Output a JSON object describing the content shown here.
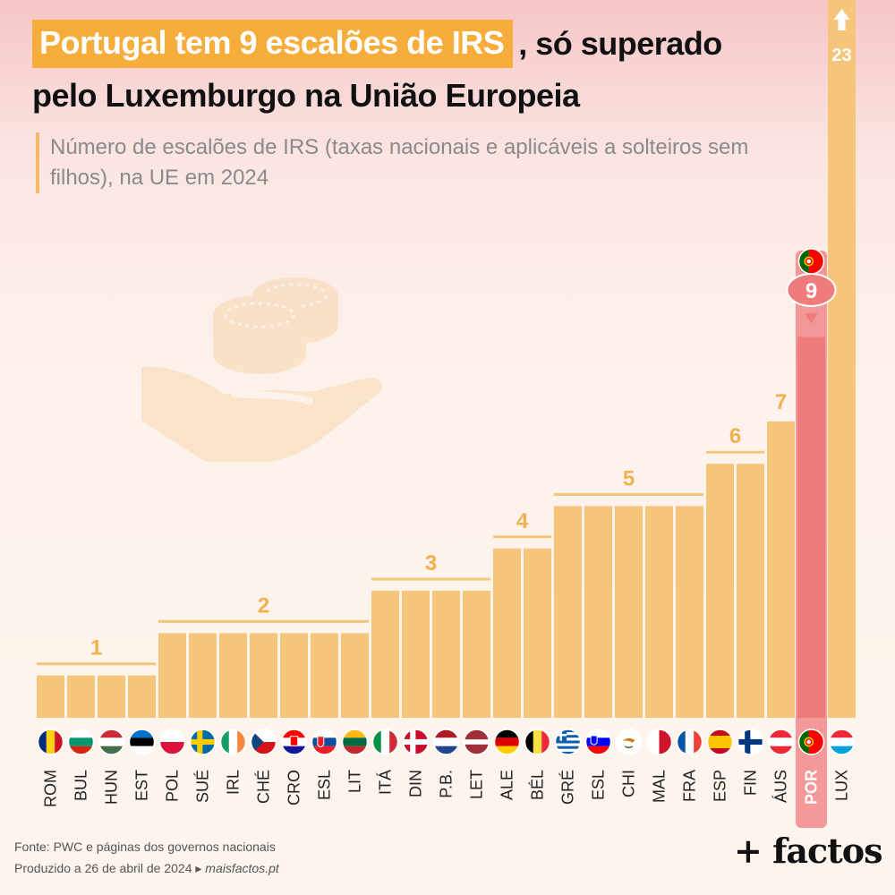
{
  "title": {
    "highlight": "Portugal tem 9 escalões de IRS",
    "rest": ", só superado",
    "line2": "pelo Luxemburgo na União Europeia"
  },
  "subtitle": "Número de escalões de IRS (taxas nacionais e aplicáveis a solteiros sem filhos), na UE em 2024",
  "colors": {
    "bar": "#f5c57a",
    "highlight": "#ef7b7d",
    "accent": "#f6ad3c"
  },
  "chart_data": {
    "type": "bar",
    "categories": [
      "ROM",
      "BUL",
      "HUN",
      "EST",
      "POL",
      "SUÉ",
      "IRL",
      "CHÉ",
      "CRO",
      "ESL",
      "LIT",
      "ITÁ",
      "DIN",
      "P.B.",
      "LET",
      "ALE",
      "BÉL",
      "GRÉ",
      "ESL",
      "CHI",
      "MAL",
      "FRA",
      "ESP",
      "FIN",
      "ÁUS",
      "POR",
      "LUX"
    ],
    "values": [
      1,
      1,
      1,
      1,
      2,
      2,
      2,
      2,
      2,
      2,
      2,
      3,
      3,
      3,
      3,
      4,
      4,
      5,
      5,
      5,
      5,
      5,
      6,
      6,
      7,
      9,
      23
    ],
    "highlight": "POR",
    "highlight_label": "9",
    "overflow_label": "23",
    "group_labels": [
      "1",
      "2",
      "3",
      "4",
      "5",
      "6",
      "7"
    ],
    "flags": [
      "romania",
      "bulgaria",
      "hungary",
      "estonia",
      "poland",
      "sweden",
      "ireland",
      "czechia",
      "croatia",
      "slovakia",
      "lithuania",
      "italy",
      "denmark",
      "netherlands",
      "latvia",
      "germany",
      "belgium",
      "greece",
      "slovenia",
      "cyprus",
      "malta",
      "france",
      "spain",
      "finland",
      "austria",
      "portugal",
      "luxembourg"
    ]
  },
  "source": {
    "line1": "Fonte: PWC e páginas dos governos nacionais",
    "line2_prefix": "Produzido a 26 de abril de 2024 ▸ ",
    "site": "maisfactos.pt"
  },
  "brand": "+ factos",
  "illustration": "hand-with-coins-icon"
}
